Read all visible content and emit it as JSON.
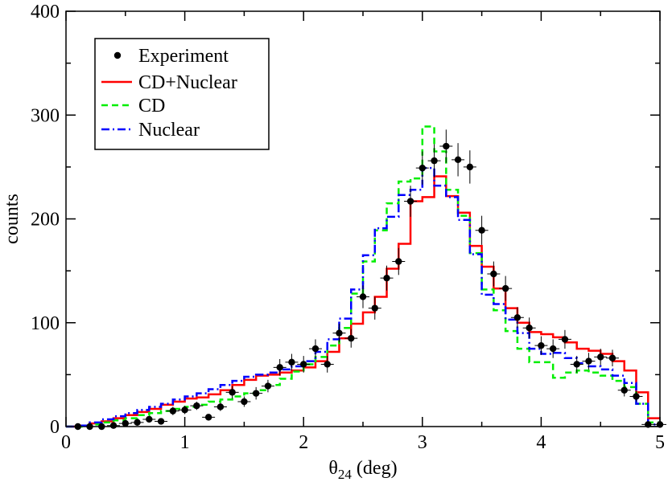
{
  "chart_data": {
    "type": "line",
    "xlabel_main": "θ",
    "xlabel_sub": "24",
    "xlabel_unit": " (deg)",
    "ylabel": "counts",
    "xlim": [
      0,
      5
    ],
    "ylim": [
      0,
      400
    ],
    "x_ticks": [
      0,
      1,
      2,
      3,
      4,
      5
    ],
    "y_ticks": [
      0,
      100,
      200,
      300,
      400
    ],
    "x_minor_step": 0.5,
    "y_minor_step": 50,
    "bin_edges": [
      0.0,
      0.1,
      0.2,
      0.3,
      0.4,
      0.5,
      0.6,
      0.7,
      0.8,
      0.9,
      1.0,
      1.1,
      1.2,
      1.3,
      1.4,
      1.5,
      1.6,
      1.7,
      1.8,
      1.9,
      2.0,
      2.1,
      2.2,
      2.3,
      2.4,
      2.5,
      2.6,
      2.7,
      2.8,
      2.9,
      3.0,
      3.1,
      3.2,
      3.3,
      3.4,
      3.5,
      3.6,
      3.7,
      3.8,
      3.9,
      4.0,
      4.1,
      4.2,
      4.3,
      4.4,
      4.5,
      4.6,
      4.7,
      4.8,
      4.9,
      5.0
    ],
    "legend_position": "top-left",
    "series": [
      {
        "name": "Experiment",
        "style": "points",
        "color": "#000000",
        "x": [
          0.1,
          0.2,
          0.3,
          0.4,
          0.5,
          0.6,
          0.7,
          0.8,
          0.9,
          1.0,
          1.1,
          1.2,
          1.3,
          1.4,
          1.5,
          1.6,
          1.7,
          1.8,
          1.9,
          2.0,
          2.1,
          2.2,
          2.3,
          2.4,
          2.5,
          2.6,
          2.7,
          2.8,
          2.9,
          3.0,
          3.1,
          3.2,
          3.3,
          3.4,
          3.5,
          3.6,
          3.7,
          3.8,
          3.9,
          4.0,
          4.1,
          4.2,
          4.3,
          4.4,
          4.5,
          4.6,
          4.7,
          4.8,
          4.9,
          5.0
        ],
        "y": [
          0,
          0,
          0,
          1,
          3,
          4,
          7,
          5,
          15,
          16,
          20,
          9,
          19,
          33,
          24,
          32,
          39,
          57,
          62,
          60,
          75,
          60,
          90,
          85,
          125,
          114,
          143,
          159,
          217,
          249,
          256,
          270,
          257,
          250,
          189,
          147,
          133,
          105,
          95,
          78,
          75,
          84,
          60,
          63,
          67,
          66,
          35,
          29,
          2,
          2
        ],
        "yerr": [
          0,
          0,
          0,
          1,
          2,
          2,
          3,
          2,
          4,
          4,
          4,
          3,
          4,
          6,
          5,
          6,
          6,
          8,
          8,
          8,
          9,
          8,
          9,
          9,
          11,
          11,
          12,
          13,
          15,
          16,
          16,
          16,
          16,
          16,
          14,
          12,
          12,
          10,
          10,
          9,
          9,
          9,
          8,
          8,
          8,
          8,
          6,
          5,
          1,
          1
        ]
      },
      {
        "name": "CD+Nuclear",
        "style": "step",
        "color": "#ff0000",
        "dash": "",
        "values": [
          0,
          1,
          3,
          5,
          8,
          11,
          14,
          17,
          21,
          24,
          27,
          28,
          31,
          35,
          40,
          45,
          49,
          50,
          52,
          54,
          57,
          63,
          72,
          85,
          99,
          110,
          125,
          152,
          176,
          217,
          221,
          241,
          222,
          206,
          174,
          154,
          133,
          114,
          100,
          91,
          89,
          86,
          81,
          75,
          73,
          70,
          63,
          54,
          33,
          8
        ]
      },
      {
        "name": "CD",
        "style": "step",
        "color": "#00ee00",
        "dash": "8,5",
        "values": [
          0,
          0,
          2,
          4,
          6,
          8,
          11,
          13,
          15,
          17,
          19,
          21,
          24,
          26,
          29,
          32,
          35,
          40,
          46,
          53,
          60,
          67,
          78,
          95,
          128,
          159,
          189,
          215,
          236,
          239,
          289,
          265,
          228,
          203,
          167,
          132,
          112,
          92,
          75,
          62,
          62,
          47,
          52,
          54,
          52,
          49,
          44,
          38,
          22,
          4
        ]
      },
      {
        "name": "Nuclear",
        "style": "step",
        "color": "#0000ff",
        "dash": "10,4,2,4",
        "values": [
          0,
          1,
          4,
          7,
          10,
          13,
          16,
          19,
          22,
          26,
          29,
          32,
          36,
          40,
          44,
          48,
          50,
          52,
          55,
          58,
          63,
          72,
          84,
          104,
          132,
          165,
          191,
          202,
          223,
          228,
          249,
          232,
          221,
          199,
          166,
          127,
          118,
          103,
          90,
          75,
          70,
          71,
          66,
          61,
          58,
          55,
          49,
          42,
          22,
          2
        ]
      }
    ]
  }
}
